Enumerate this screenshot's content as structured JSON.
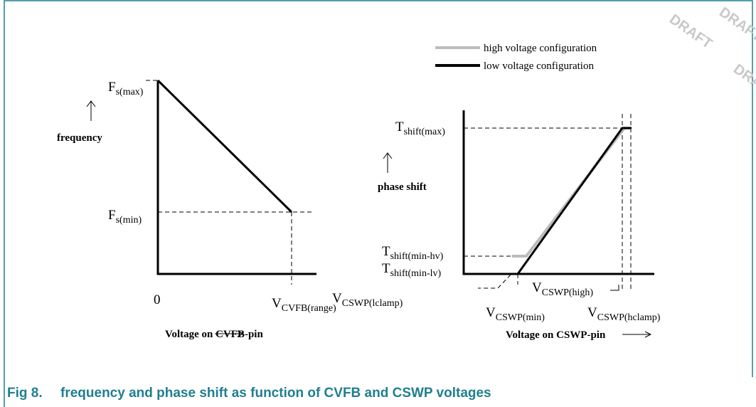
{
  "watermark": [
    "DRAFT",
    "DRAFT",
    "DRAFT"
  ],
  "left": {
    "y_label_top": {
      "base": "F",
      "sub": "s(max)"
    },
    "y_label_bottom": {
      "base": "F",
      "sub": "s(min)"
    },
    "y_axis_title": "frequency",
    "x_origin": "0",
    "x_label": {
      "base": "V",
      "sub": "CVFB(range)"
    },
    "x_axis_title": "Voltage on CVFB-pin"
  },
  "right": {
    "legend": [
      "high voltage configuration",
      "low voltage configuration"
    ],
    "y_label_max": {
      "base": "T",
      "sub": "shift(max)"
    },
    "y_label_min_hv": {
      "base": "T",
      "sub": "shift(min-hv)"
    },
    "y_label_min_lv": {
      "base": "T",
      "sub": "shift(min-lv)"
    },
    "y_axis_title": "phase shift",
    "x_label_lclamp": {
      "base": "V",
      "sub": "CSWP(lclamp)"
    },
    "x_label_min": {
      "base": "V",
      "sub": "CSWP(min)"
    },
    "x_label_high": {
      "base": "V",
      "sub": "CSWP(high)"
    },
    "x_label_hclamp": {
      "base": "V",
      "sub": "CSWP(hclamp)"
    },
    "x_axis_title": "Voltage on CSWP-pin"
  },
  "caption": {
    "number": "Fig 8.",
    "text": "frequency and phase shift as function of CVFB and CSWP voltages"
  }
}
